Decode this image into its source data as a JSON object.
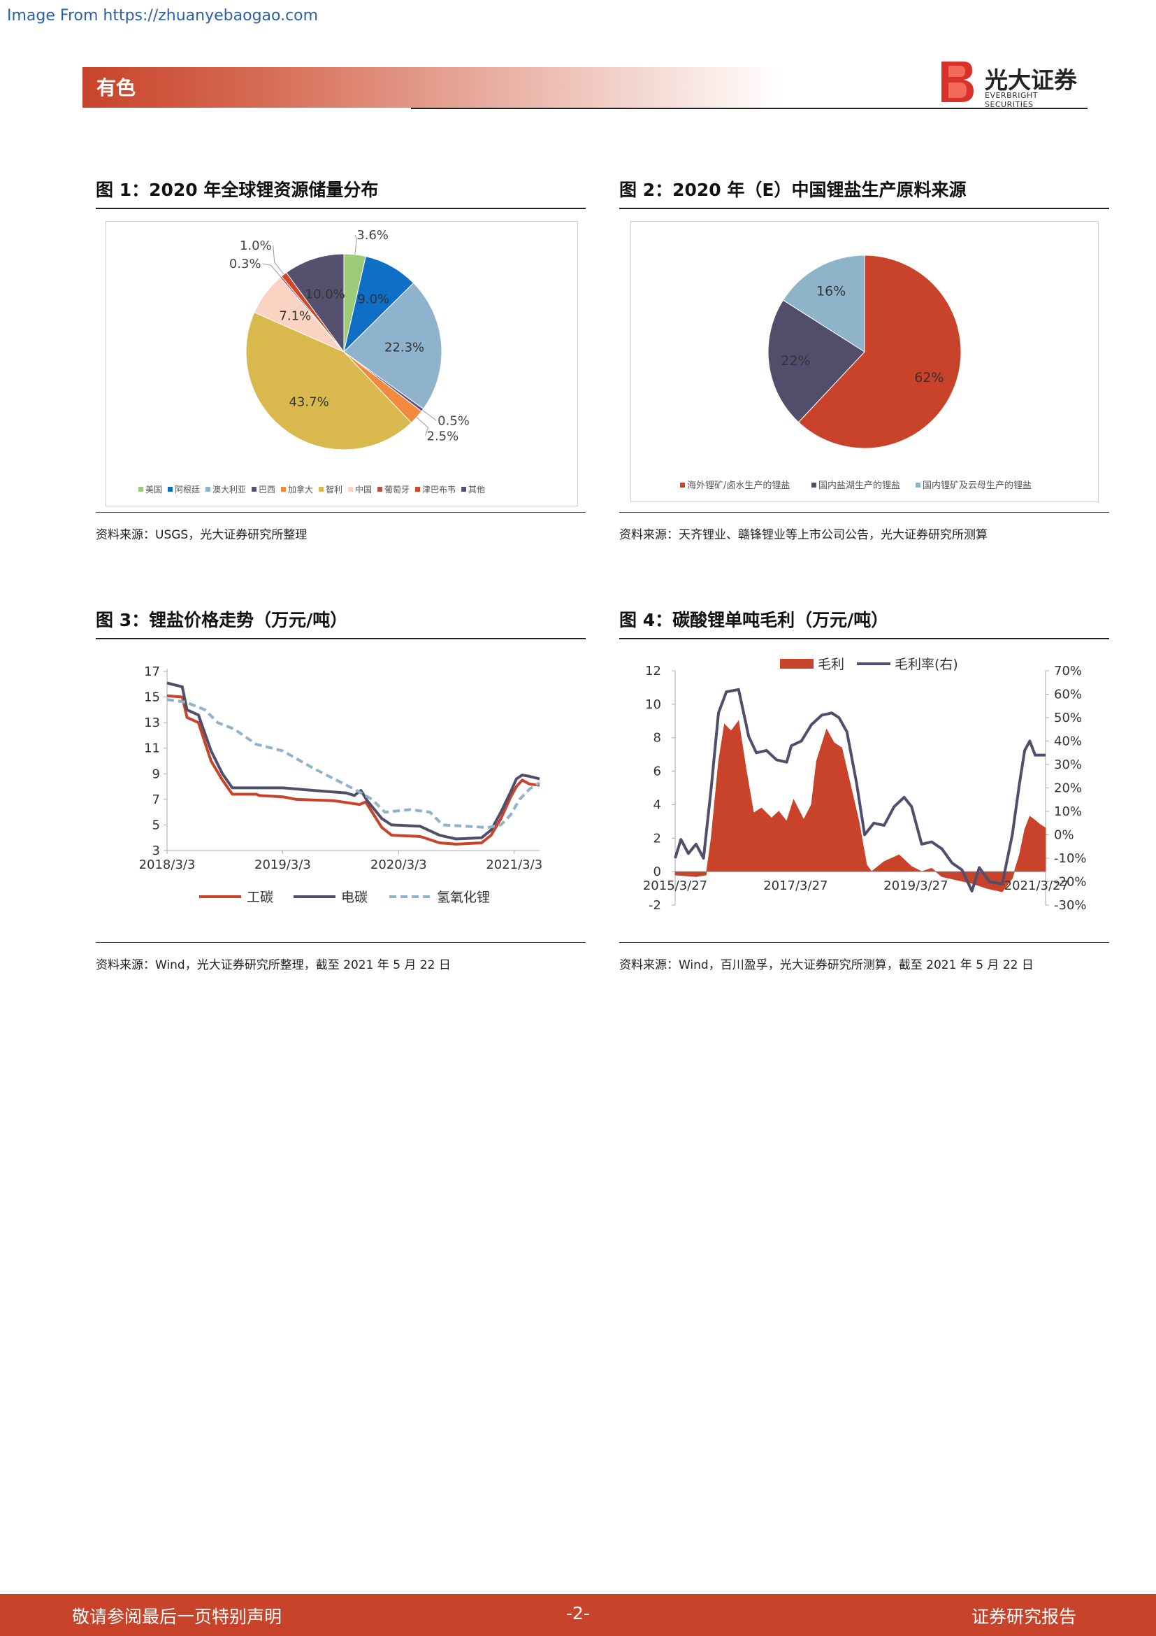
{
  "source_link": "Image From https://zhuanyebaogao.com",
  "header": {
    "section": "有色",
    "logo_cn": "光大证券",
    "logo_en": "EVERBRIGHT SECURITIES"
  },
  "colors": {
    "brand": "#c8432a"
  },
  "figures": [
    {
      "title": "图 1：2020 年全球锂资源储量分布",
      "source": "资料来源：USGS，光大证券研究所整理"
    },
    {
      "title": "图 2：2020 年（E）中国锂盐生产原料来源",
      "source": "资料来源：天齐锂业、赣锋锂业等上市公司公告，光大证券研究所测算"
    },
    {
      "title": "图 3：锂盐价格走势（万元/吨）",
      "source": "资料来源：Wind，光大证券研究所整理，截至 2021 年 5 月 22 日"
    },
    {
      "title": "图 4：碳酸锂单吨毛利（万元/吨）",
      "source": "资料来源：Wind，百川盈孚，光大证券研究所测算，截至 2021 年 5 月 22 日"
    }
  ],
  "chart_data": [
    {
      "type": "pie",
      "slices": [
        {
          "label": "美国",
          "value": 3.6,
          "display": "3.6%",
          "color": "#9ccc7a"
        },
        {
          "label": "阿根廷",
          "value": 9.0,
          "display": "9.0%",
          "color": "#0f6fc6"
        },
        {
          "label": "澳大利亚",
          "value": 22.3,
          "display": "22.3%",
          "color": "#8fb3cc"
        },
        {
          "label": "巴西",
          "value": 0.5,
          "display": "0.5%",
          "color": "#5b5079"
        },
        {
          "label": "加拿大",
          "value": 2.5,
          "display": "2.5%",
          "color": "#f08a3c"
        },
        {
          "label": "智利",
          "value": 43.7,
          "display": "43.7%",
          "color": "#d9b84e"
        },
        {
          "label": "中国",
          "value": 7.1,
          "display": "7.1%",
          "color": "#fbd3c3"
        },
        {
          "label": "葡萄牙",
          "value": 0.3,
          "display": "0.3%",
          "color": "#c0504d"
        },
        {
          "label": "津巴布韦",
          "value": 1.0,
          "display": "1.0%",
          "color": "#d24726"
        },
        {
          "label": "其他",
          "value": 10.0,
          "display": "10.0%",
          "color": "#54506e"
        }
      ],
      "legend_position": "bottom"
    },
    {
      "type": "pie",
      "slices": [
        {
          "label": "海外锂矿/卤水生产的锂盐",
          "value": 62,
          "display": "62%",
          "color": "#c8432a"
        },
        {
          "label": "国内盐湖生产的锂盐",
          "value": 22,
          "display": "22%",
          "color": "#514e6c"
        },
        {
          "label": "国内锂矿及云母生产的锂盐",
          "value": 16,
          "display": "16%",
          "color": "#8fb3c8"
        }
      ],
      "legend_position": "bottom"
    },
    {
      "type": "line",
      "x_ticks": [
        "2018/3/3",
        "2019/3/3",
        "2020/3/3",
        "2021/3/3"
      ],
      "x_range": [
        "2018-03-03",
        "2021-05-22"
      ],
      "y_ticks": [
        3,
        5,
        7,
        9,
        11,
        13,
        15,
        17
      ],
      "ylim": [
        3,
        17
      ],
      "legend_position": "bottom",
      "series": [
        {
          "name": "工碳",
          "color": "#c8432a",
          "dash": false,
          "points": [
            [
              "2018-03-03",
              15.1
            ],
            [
              "2018-04-20",
              15.0
            ],
            [
              "2018-05-05",
              13.4
            ],
            [
              "2018-06-10",
              13.0
            ],
            [
              "2018-07-20",
              10.0
            ],
            [
              "2018-08-25",
              8.5
            ],
            [
              "2018-09-25",
              7.4
            ],
            [
              "2018-12-10",
              7.4
            ],
            [
              "2018-12-20",
              7.3
            ],
            [
              "2019-03-03",
              7.2
            ],
            [
              "2019-04-15",
              7.0
            ],
            [
              "2019-08-10",
              6.9
            ],
            [
              "2019-11-01",
              6.6
            ],
            [
              "2019-11-20",
              6.8
            ],
            [
              "2020-01-10",
              4.8
            ],
            [
              "2020-02-10",
              4.2
            ],
            [
              "2020-05-10",
              4.1
            ],
            [
              "2020-07-10",
              3.6
            ],
            [
              "2020-09-01",
              3.5
            ],
            [
              "2020-11-20",
              3.6
            ],
            [
              "2020-12-20",
              4.2
            ],
            [
              "2021-01-20",
              5.5
            ],
            [
              "2021-02-20",
              7.2
            ],
            [
              "2021-03-10",
              8.0
            ],
            [
              "2021-03-28",
              8.5
            ],
            [
              "2021-04-20",
              8.2
            ],
            [
              "2021-05-22",
              8.1
            ]
          ]
        },
        {
          "name": "电碳",
          "color": "#514e6c",
          "dash": false,
          "points": [
            [
              "2018-03-03",
              16.1
            ],
            [
              "2018-04-20",
              15.8
            ],
            [
              "2018-05-05",
              14.0
            ],
            [
              "2018-06-10",
              13.6
            ],
            [
              "2018-07-20",
              10.8
            ],
            [
              "2018-08-25",
              9.0
            ],
            [
              "2018-09-25",
              7.9
            ],
            [
              "2019-03-03",
              7.9
            ],
            [
              "2019-06-10",
              7.7
            ],
            [
              "2019-09-20",
              7.5
            ],
            [
              "2019-10-15",
              7.3
            ],
            [
              "2019-11-05",
              7.7
            ],
            [
              "2019-11-25",
              6.9
            ],
            [
              "2020-01-10",
              5.5
            ],
            [
              "2020-02-10",
              5.0
            ],
            [
              "2020-05-10",
              4.9
            ],
            [
              "2020-07-10",
              4.2
            ],
            [
              "2020-09-01",
              3.9
            ],
            [
              "2020-11-20",
              4.0
            ],
            [
              "2020-12-20",
              4.6
            ],
            [
              "2021-01-20",
              6.0
            ],
            [
              "2021-02-20",
              7.6
            ],
            [
              "2021-03-10",
              8.6
            ],
            [
              "2021-03-28",
              8.9
            ],
            [
              "2021-04-20",
              8.8
            ],
            [
              "2021-05-22",
              8.6
            ]
          ]
        },
        {
          "name": "氢氧化锂",
          "color": "#8fb3c8",
          "dash": true,
          "points": [
            [
              "2018-03-03",
              14.8
            ],
            [
              "2018-05-01",
              14.6
            ],
            [
              "2018-07-01",
              14.0
            ],
            [
              "2018-08-10",
              13.0
            ],
            [
              "2018-10-01",
              12.5
            ],
            [
              "2018-12-10",
              11.3
            ],
            [
              "2019-03-03",
              10.8
            ],
            [
              "2019-06-10",
              9.4
            ],
            [
              "2019-10-15",
              7.8
            ],
            [
              "2019-12-10",
              7.0
            ],
            [
              "2020-01-20",
              6.0
            ],
            [
              "2020-04-10",
              6.2
            ],
            [
              "2020-06-10",
              6.0
            ],
            [
              "2020-07-20",
              5.0
            ],
            [
              "2020-12-10",
              4.8
            ],
            [
              "2021-01-20",
              5.0
            ],
            [
              "2021-02-20",
              5.8
            ],
            [
              "2021-03-20",
              7.0
            ],
            [
              "2021-04-20",
              7.8
            ],
            [
              "2021-05-22",
              8.3
            ]
          ]
        }
      ]
    },
    {
      "type": "bar+line",
      "x_ticks": [
        "2015/3/27",
        "2017/3/27",
        "2019/3/27",
        "2021/3/27"
      ],
      "x_range": [
        "2015-03-27",
        "2021-05-22"
      ],
      "y_ticks": [
        -2,
        0,
        2,
        4,
        6,
        8,
        10,
        12
      ],
      "ylim": [
        -2,
        12
      ],
      "y2_ticks": [
        "-30%",
        "-20%",
        "-10%",
        "0%",
        "10%",
        "20%",
        "30%",
        "40%",
        "50%",
        "60%",
        "70%"
      ],
      "y2lim": [
        -30,
        70
      ],
      "legend_position": "top",
      "series": [
        {
          "name": "毛利",
          "kind": "area",
          "color": "#c8432a",
          "points": [
            [
              "2015-03-27",
              -0.2
            ],
            [
              "2015-08-01",
              -0.3
            ],
            [
              "2015-10-01",
              -0.2
            ],
            [
              "2015-11-01",
              2.0
            ],
            [
              "2015-12-15",
              6.5
            ],
            [
              "2016-01-20",
              8.8
            ],
            [
              "2016-03-01",
              8.4
            ],
            [
              "2016-04-15",
              9.0
            ],
            [
              "2016-06-01",
              6.0
            ],
            [
              "2016-07-15",
              3.5
            ],
            [
              "2016-09-01",
              3.8
            ],
            [
              "2016-11-01",
              3.2
            ],
            [
              "2016-12-15",
              3.6
            ],
            [
              "2017-02-01",
              3.0
            ],
            [
              "2017-03-15",
              4.3
            ],
            [
              "2017-05-15",
              3.1
            ],
            [
              "2017-07-01",
              4.0
            ],
            [
              "2017-08-01",
              6.6
            ],
            [
              "2017-10-01",
              8.5
            ],
            [
              "2017-11-15",
              7.7
            ],
            [
              "2018-01-01",
              7.4
            ],
            [
              "2018-02-15",
              5.5
            ],
            [
              "2018-04-15",
              3.0
            ],
            [
              "2018-06-01",
              0.4
            ],
            [
              "2018-07-01",
              0.0
            ],
            [
              "2018-09-15",
              0.6
            ],
            [
              "2018-12-15",
              1.0
            ],
            [
              "2019-03-01",
              0.3
            ],
            [
              "2019-05-01",
              0.0
            ],
            [
              "2019-07-01",
              0.2
            ],
            [
              "2019-09-01",
              -0.3
            ],
            [
              "2019-12-01",
              -0.5
            ],
            [
              "2020-03-01",
              -0.7
            ],
            [
              "2020-06-01",
              -1.0
            ],
            [
              "2020-09-01",
              -1.2
            ],
            [
              "2020-11-01",
              -0.4
            ],
            [
              "2020-12-15",
              1.0
            ],
            [
              "2021-01-15",
              2.5
            ],
            [
              "2021-02-15",
              3.3
            ],
            [
              "2021-03-15",
              3.1
            ],
            [
              "2021-04-20",
              2.8
            ],
            [
              "2021-05-22",
              2.6
            ]
          ]
        },
        {
          "name": "毛利率(右)",
          "kind": "line",
          "axis": "right",
          "color": "#514e6c",
          "points": [
            [
              "2015-03-27",
              -10
            ],
            [
              "2015-05-01",
              -2
            ],
            [
              "2015-06-15",
              -8
            ],
            [
              "2015-08-01",
              -4
            ],
            [
              "2015-09-15",
              -10
            ],
            [
              "2015-11-01",
              20
            ],
            [
              "2015-12-15",
              52
            ],
            [
              "2016-02-01",
              61
            ],
            [
              "2016-04-15",
              62
            ],
            [
              "2016-06-15",
              42
            ],
            [
              "2016-08-01",
              35
            ],
            [
              "2016-10-01",
              36
            ],
            [
              "2016-12-01",
              32
            ],
            [
              "2017-02-01",
              31
            ],
            [
              "2017-03-01",
              38
            ],
            [
              "2017-05-01",
              40
            ],
            [
              "2017-07-01",
              47
            ],
            [
              "2017-09-01",
              51
            ],
            [
              "2017-11-01",
              52
            ],
            [
              "2017-12-15",
              50
            ],
            [
              "2018-02-01",
              44
            ],
            [
              "2018-04-01",
              22
            ],
            [
              "2018-05-20",
              0
            ],
            [
              "2018-07-15",
              5
            ],
            [
              "2018-09-15",
              4
            ],
            [
              "2018-11-15",
              12
            ],
            [
              "2019-01-15",
              16
            ],
            [
              "2019-03-01",
              12
            ],
            [
              "2019-05-01",
              -4
            ],
            [
              "2019-07-01",
              -3
            ],
            [
              "2019-09-01",
              -6
            ],
            [
              "2019-11-01",
              -12
            ],
            [
              "2020-01-01",
              -15
            ],
            [
              "2020-03-01",
              -24
            ],
            [
              "2020-04-15",
              -14
            ],
            [
              "2020-06-15",
              -20
            ],
            [
              "2020-09-01",
              -21
            ],
            [
              "2020-11-01",
              0
            ],
            [
              "2020-12-15",
              22
            ],
            [
              "2021-01-15",
              36
            ],
            [
              "2021-02-15",
              40
            ],
            [
              "2021-03-20",
              34
            ],
            [
              "2021-05-22",
              34
            ]
          ]
        }
      ]
    }
  ],
  "footer": {
    "left": "敬请参阅最后一页特别声明",
    "page": "-2-",
    "right": "证券研究报告"
  }
}
